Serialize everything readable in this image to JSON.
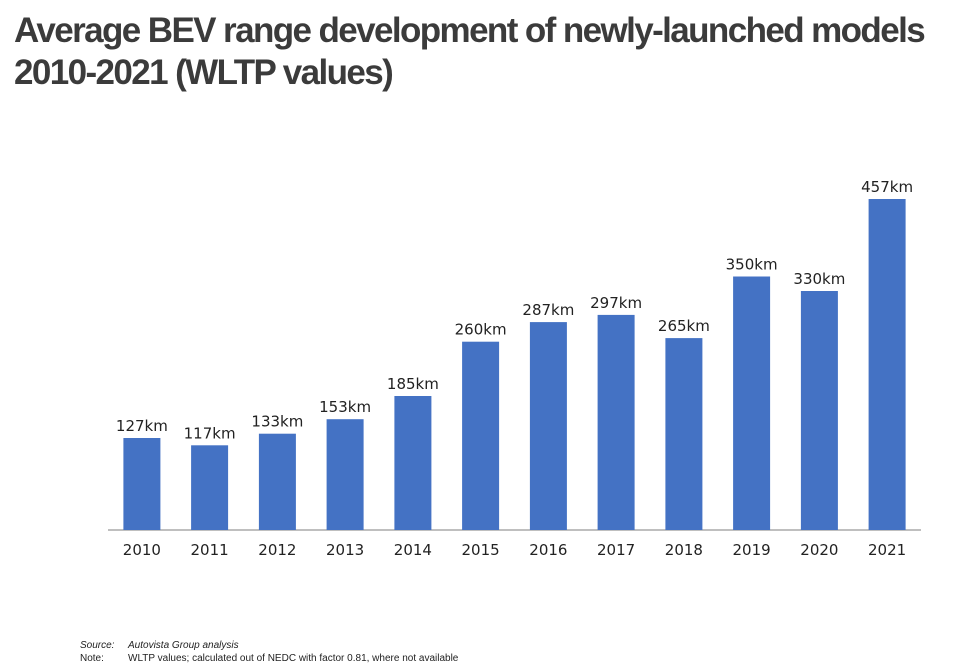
{
  "title_line1": "Average BEV range development of newly-launched models",
  "title_line2": "2010-2021 (WLTP values)",
  "chart_data": {
    "type": "bar",
    "categories": [
      "2010",
      "2011",
      "2012",
      "2013",
      "2014",
      "2015",
      "2016",
      "2017",
      "2018",
      "2019",
      "2020",
      "2021"
    ],
    "values": [
      127,
      117,
      133,
      153,
      185,
      260,
      287,
      297,
      265,
      350,
      330,
      457
    ],
    "data_labels": [
      "127km",
      "117km",
      "133km",
      "153km",
      "185km",
      "260km",
      "287km",
      "297km",
      "265km",
      "350km",
      "330km",
      "457km"
    ],
    "unit": "km",
    "ylim": [
      0,
      480
    ],
    "bar_color": "#4472c4",
    "grid": false,
    "legend": "none"
  },
  "footer": {
    "source_label": "Source:",
    "source_value": "Autovista Group analysis",
    "note_label": "Note:",
    "note_value": "WLTP values; calculated out of NEDC with factor 0.81, where not available"
  }
}
